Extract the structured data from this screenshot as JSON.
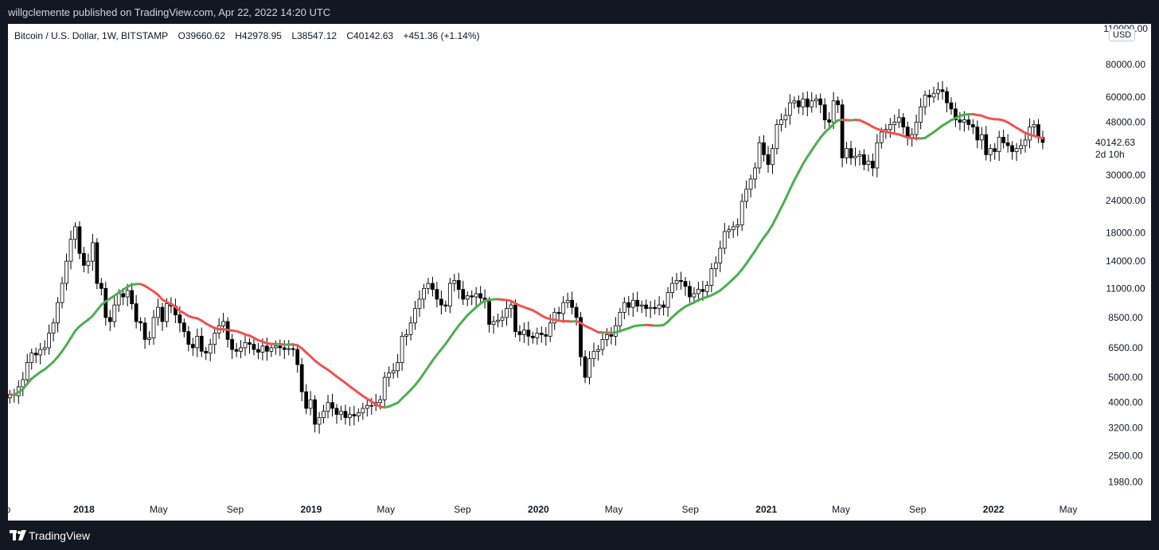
{
  "header": {
    "published": "willgclemente published on TradingView.com, Apr 22, 2022 14:20 UTC"
  },
  "legend": {
    "symbol": "Bitcoin / U.S. Dollar, 1W, BITSTAMP",
    "open": "O39660.62",
    "high": "H42978.95",
    "low": "L38547.12",
    "close": "C40142.63",
    "change": "+451.36 (+1.14%)"
  },
  "currency": "USD",
  "footer": {
    "brand": "TradingView"
  },
  "colors": {
    "up": "#ffffff",
    "down": "#000000",
    "ma_up": "#4caf50",
    "ma_down": "#f05350",
    "background": "#131722"
  },
  "chart_data": {
    "type": "candlestick",
    "scale": "log",
    "ylim": [
      1700,
      110000
    ],
    "price_ticks": [
      110000,
      80000,
      60000,
      48000,
      30000,
      24000,
      18000,
      14000,
      11000,
      8500,
      6500,
      5000,
      4000,
      3200,
      2500,
      1980
    ],
    "price_tick_labels": [
      "110000.00",
      "80000.00",
      "60000.00",
      "48000.00",
      "30000.00",
      "24000.00",
      "18000.00",
      "14000.00",
      "11000.00",
      "8500.00",
      "6500.00",
      "5000.00",
      "4000.00",
      "3200.00",
      "2500.00",
      "1980.00"
    ],
    "last_price": {
      "value": 40142.63,
      "label": "40142.63",
      "countdown": "2d 10h"
    },
    "x_ticks": [
      {
        "date": "2017-09-01",
        "label": "p",
        "bold": false
      },
      {
        "date": "2018-01-01",
        "label": "2018",
        "bold": true
      },
      {
        "date": "2018-05-01",
        "label": "May",
        "bold": false
      },
      {
        "date": "2018-09-01",
        "label": "Sep",
        "bold": false
      },
      {
        "date": "2019-01-01",
        "label": "2019",
        "bold": true
      },
      {
        "date": "2019-05-01",
        "label": "May",
        "bold": false
      },
      {
        "date": "2019-09-01",
        "label": "Sep",
        "bold": false
      },
      {
        "date": "2020-01-01",
        "label": "2020",
        "bold": true
      },
      {
        "date": "2020-05-01",
        "label": "May",
        "bold": false
      },
      {
        "date": "2020-09-01",
        "label": "Sep",
        "bold": false
      },
      {
        "date": "2021-01-01",
        "label": "2021",
        "bold": true
      },
      {
        "date": "2021-05-01",
        "label": "May",
        "bold": false
      },
      {
        "date": "2021-09-01",
        "label": "Sep",
        "bold": false
      },
      {
        "date": "2022-01-01",
        "label": "2022",
        "bold": true
      },
      {
        "date": "2022-05-01",
        "label": "May",
        "bold": false
      }
    ],
    "x_start": "2017-09-04",
    "candles_weekly_close": [
      4300,
      4250,
      4600,
      4900,
      5700,
      6200,
      6100,
      6400,
      6500,
      7400,
      8100,
      9700,
      11500,
      14000,
      17000,
      19000,
      15000,
      13500,
      14000,
      16500,
      11500,
      11000,
      8500,
      8200,
      9500,
      10500,
      10200,
      10800,
      9600,
      8200,
      8100,
      7000,
      7100,
      8500,
      9300,
      8200,
      9600,
      9400,
      8700,
      8100,
      7500,
      6700,
      6500,
      7200,
      6300,
      6200,
      6700,
      7400,
      7900,
      8200,
      7000,
      6400,
      6300,
      6500,
      6800,
      6700,
      6400,
      6250,
      6600,
      6300,
      6500,
      6600,
      6500,
      6400,
      6450,
      6400,
      5600,
      4400,
      3800,
      4100,
      3300,
      3500,
      3700,
      4000,
      3800,
      3600,
      3700,
      3500,
      3600,
      3550,
      3650,
      3800,
      3900,
      3900,
      4000,
      4100,
      5000,
      5200,
      5300,
      5700,
      7200,
      7300,
      8100,
      9200,
      10000,
      11000,
      11500,
      10900,
      10000,
      9500,
      9400,
      11500,
      11800,
      10900,
      10000,
      10300,
      10200,
      10500,
      10100,
      9800,
      8000,
      8200,
      8300,
      8500,
      9200,
      9500,
      7500,
      7300,
      7600,
      7200,
      7100,
      7400,
      7300,
      7200,
      8100,
      8900,
      8800,
      9700,
      9900,
      9300,
      8500,
      6000,
      5000,
      5900,
      6300,
      6400,
      7000,
      7300,
      7200,
      7900,
      8900,
      9700,
      9300,
      9900,
      9400,
      9500,
      9200,
      9300,
      9200,
      9500,
      9300,
      10600,
      11500,
      11800,
      11700,
      11200,
      10200,
      10500,
      10900,
      10700,
      11300,
      13100,
      13800,
      15700,
      18200,
      18500,
      19000,
      19300,
      23800,
      26500,
      29000,
      32000,
      40000,
      36000,
      33000,
      38000,
      47000,
      49000,
      51000,
      57000,
      58000,
      55000,
      59000,
      55000,
      58000,
      59000,
      56000,
      49000,
      48000,
      58000,
      56000,
      35000,
      38000,
      35000,
      35500,
      36000,
      33000,
      34000,
      32000,
      40000,
      44000,
      45000,
      47000,
      48000,
      50000,
      46000,
      42000,
      43000,
      48000,
      55000,
      61000,
      60000,
      62000,
      64000,
      63000,
      57000,
      54000,
      49000,
      48000,
      49000,
      47000,
      46000,
      41000,
      43000,
      36000,
      38000,
      37000,
      42000,
      40000,
      39000,
      37000,
      38000,
      39000,
      41000,
      46000,
      47000,
      42000,
      40142.63
    ],
    "series": [
      {
        "name": "",
        "type": "moving-average",
        "note": "color turns red while falling"
      }
    ]
  }
}
